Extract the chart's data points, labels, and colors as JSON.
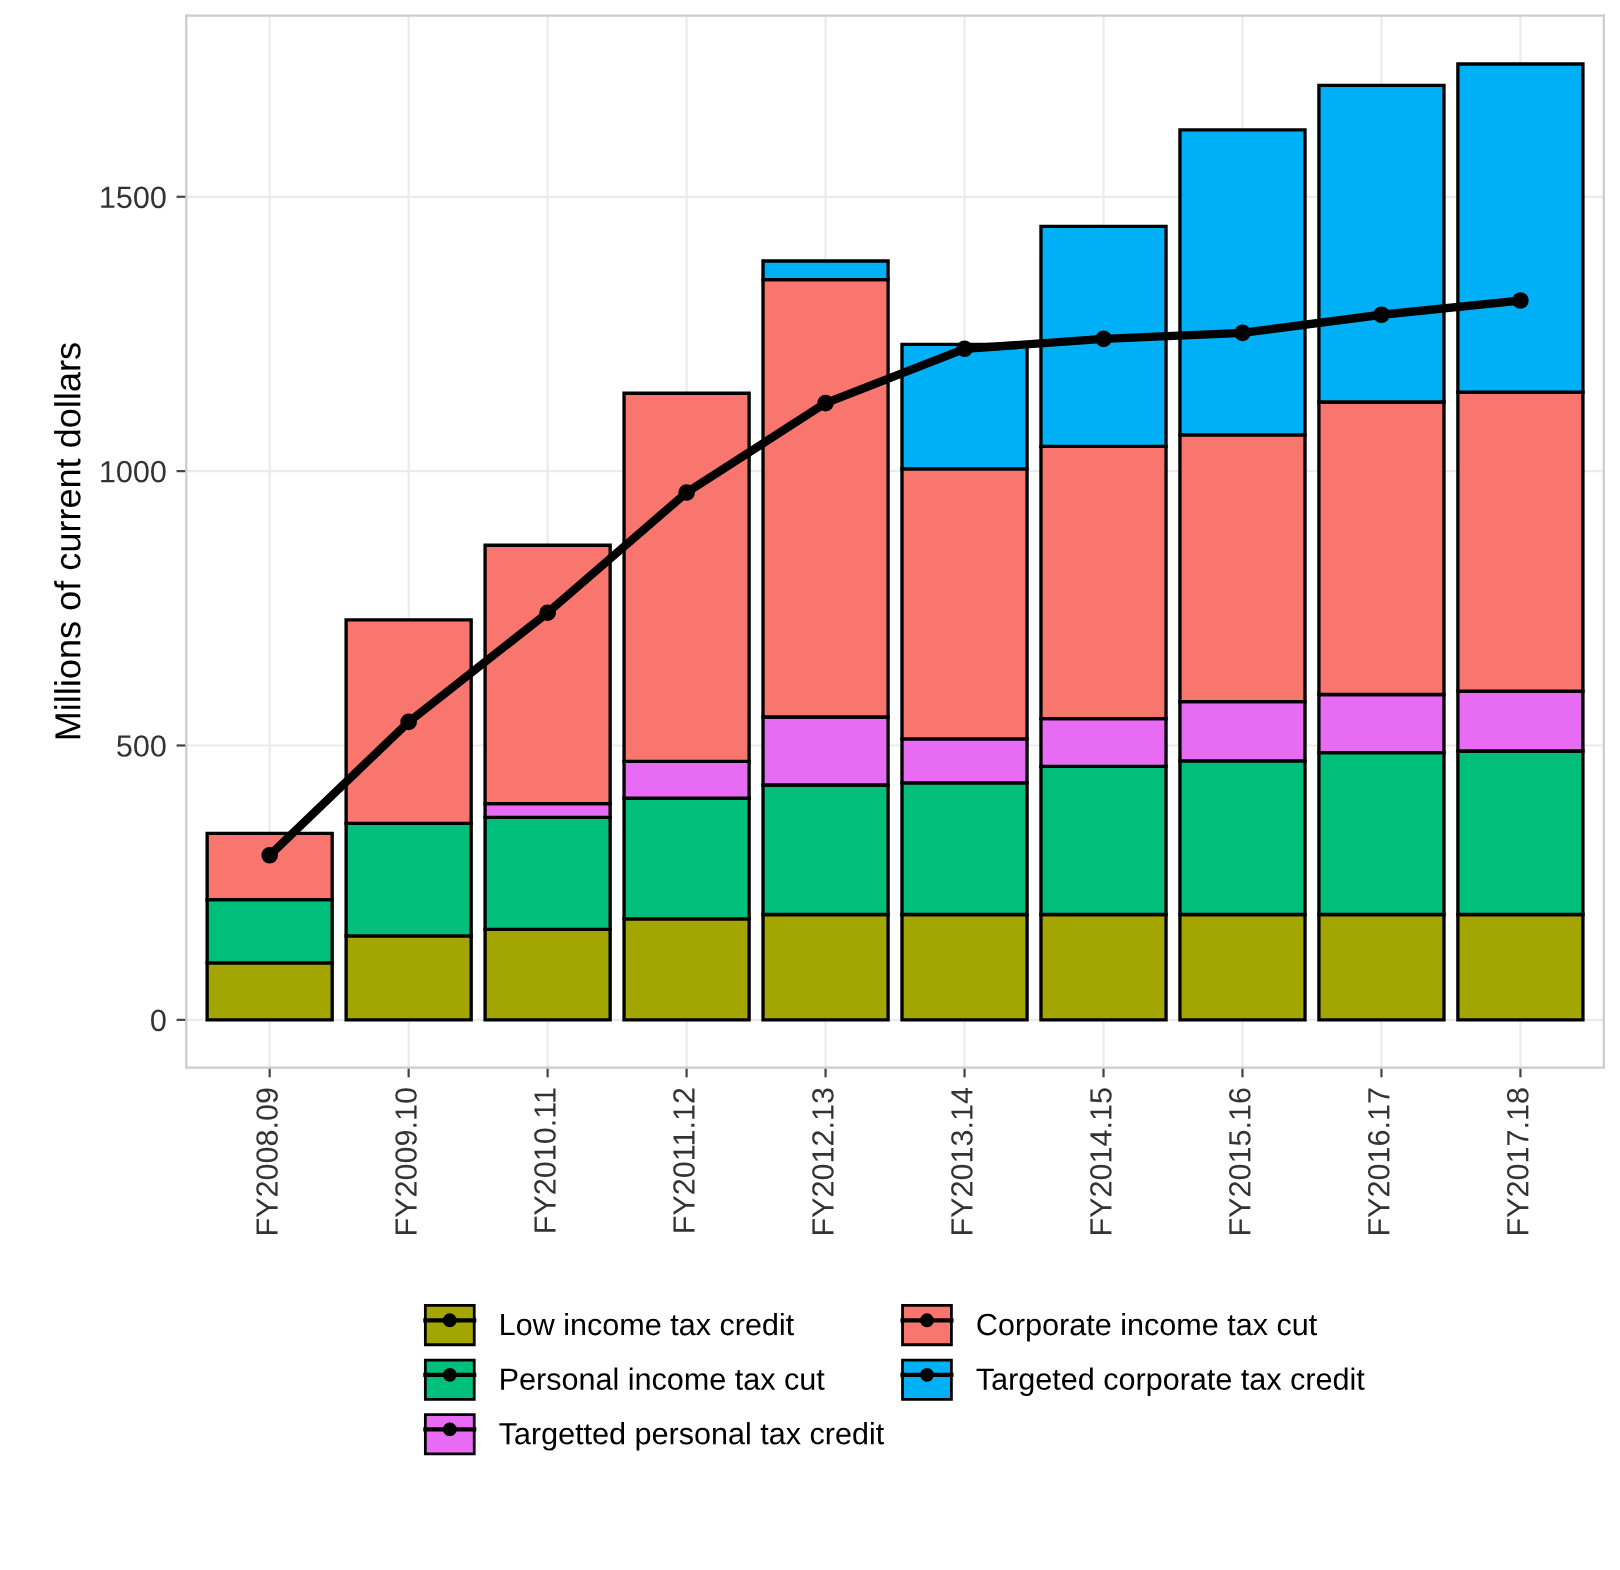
{
  "chart_data": {
    "type": "bar",
    "stacked": true,
    "ylabel": "Millions of current dollars",
    "categories": [
      "FY2008.09",
      "FY2009.10",
      "FY2010.11",
      "FY2011.12",
      "FY2012.13",
      "FY2013.14",
      "FY2014.15",
      "FY2015.16",
      "FY2016.17",
      "FY2017.18"
    ],
    "series": [
      {
        "name": "Low income tax credit",
        "color": "#a3a500",
        "values": [
          104,
          153,
          165,
          184,
          192,
          192,
          192,
          192,
          192,
          192
        ]
      },
      {
        "name": "Personal income tax cut",
        "color": "#00bf7d",
        "values": [
          115,
          205,
          204,
          220,
          236,
          240,
          270,
          280,
          295,
          298
        ]
      },
      {
        "name": "Targetted personal tax credit",
        "color": "#e76bf3",
        "values": [
          null,
          null,
          25,
          67,
          124,
          80,
          87,
          108,
          106,
          109
        ]
      },
      {
        "name": "Corporate income tax cut",
        "color": "#f8766d",
        "values": [
          121,
          371,
          471,
          671,
          797,
          492,
          496,
          486,
          533,
          545
        ]
      },
      {
        "name": "Targeted corporate tax credit",
        "color": "#00b0f6",
        "values": [
          null,
          null,
          null,
          null,
          34,
          227,
          401,
          556,
          577,
          598
        ]
      },
      {
        "type": "line",
        "color": "#000000",
        "values": [
          300,
          543,
          742,
          961,
          1124,
          1223,
          1241,
          1252,
          1285,
          1311
        ]
      }
    ],
    "ylim": [
      -87,
      1830
    ],
    "yticks": [
      0,
      500,
      1000,
      1500
    ],
    "grid": true,
    "legend": "bottom",
    "marker": "circle",
    "line_style": "solid"
  }
}
